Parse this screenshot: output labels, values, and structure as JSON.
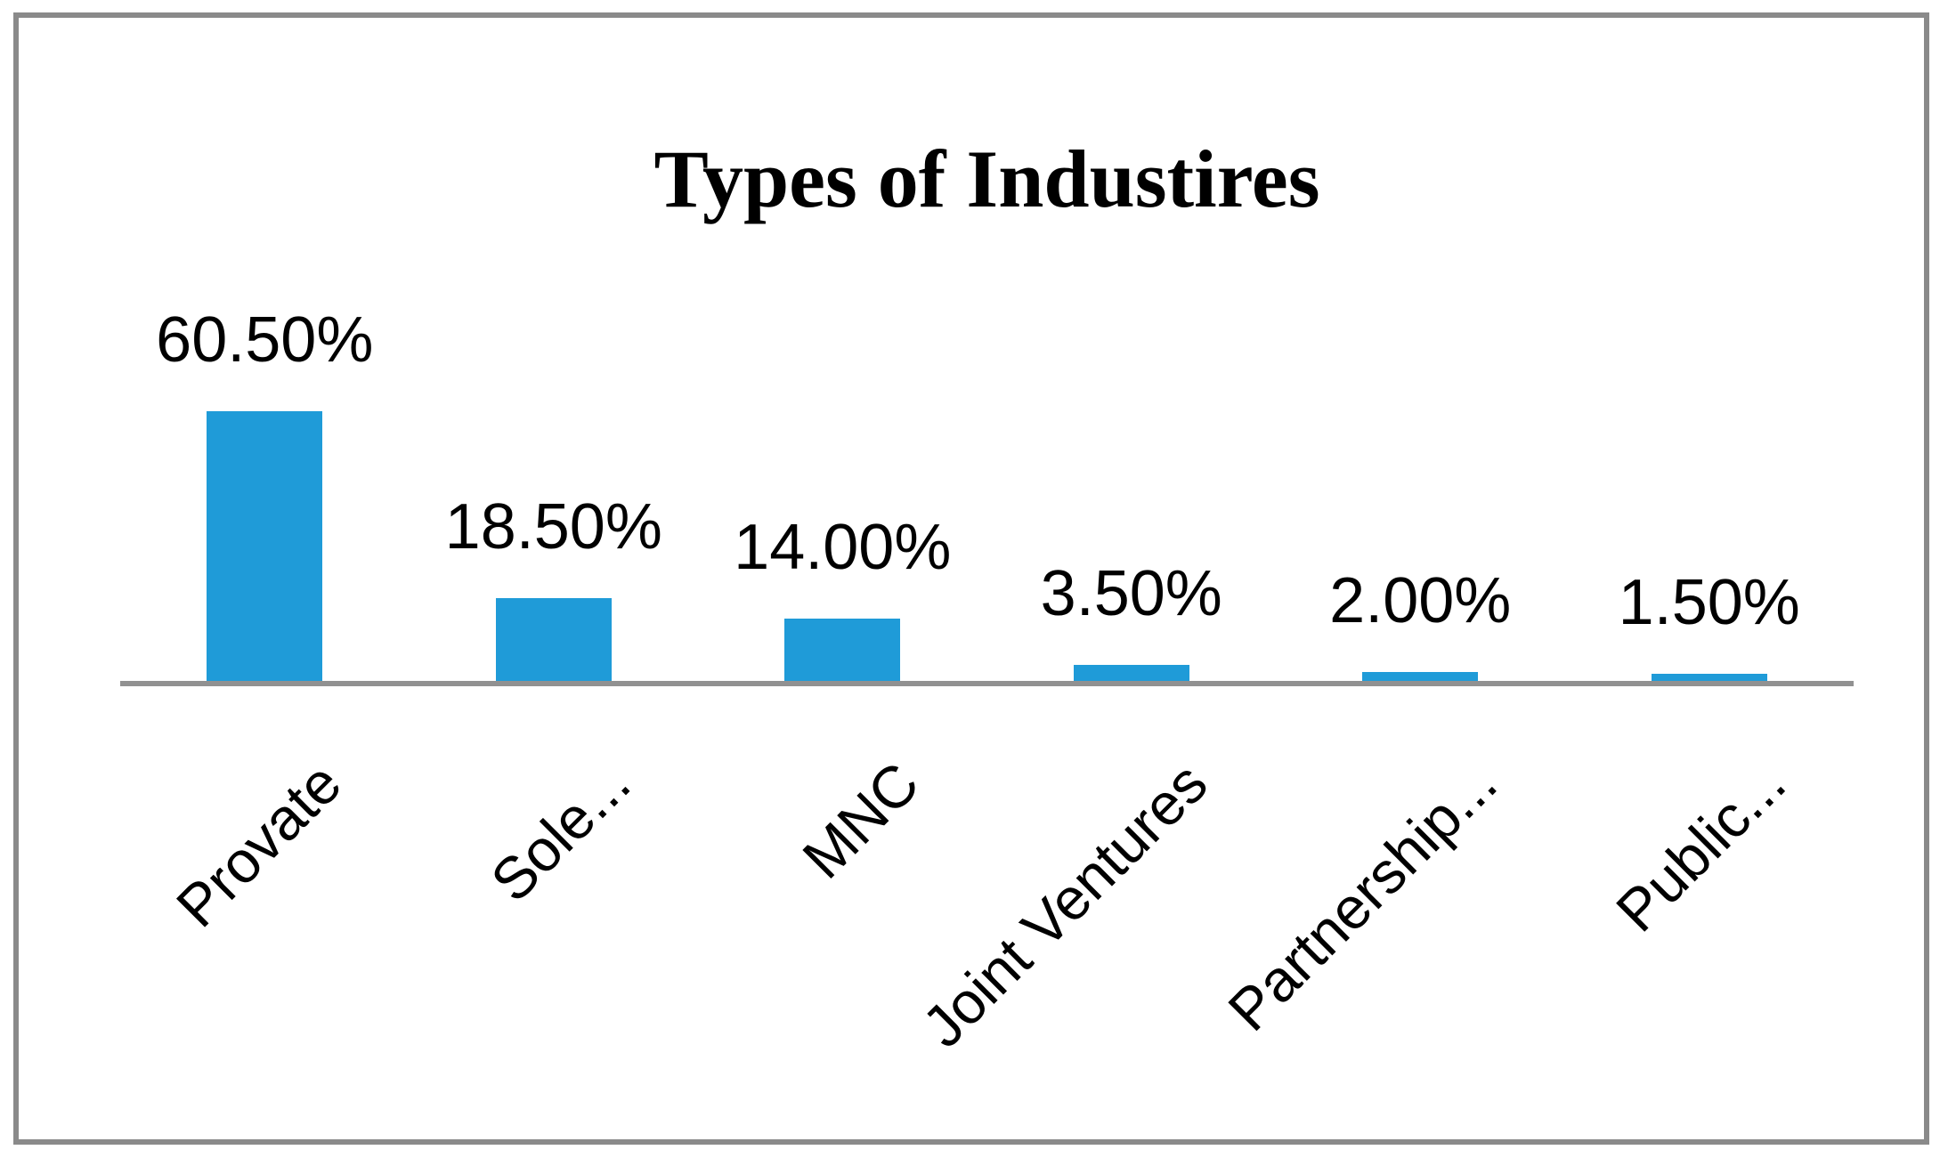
{
  "title": "Types of Industires",
  "colors": {
    "bar": "#1f9bd8",
    "axis": "#919191",
    "frame": "#8a8a8a",
    "text": "#000000",
    "background": "#ffffff"
  },
  "chart_data": {
    "type": "bar",
    "title": "Types of Industires",
    "categories": [
      "Provate",
      "Sole...",
      "MNC",
      "Joint Ventures",
      "Partnership...",
      "Public..."
    ],
    "values": [
      60.5,
      18.5,
      14.0,
      3.5,
      2.0,
      1.5
    ],
    "data_labels": [
      "60.50%",
      "18.50%",
      "14.00%",
      "3.50%",
      "2.00%",
      "1.50%"
    ],
    "xlabel": "",
    "ylabel": "",
    "ylim": [
      0,
      70
    ],
    "grid": false,
    "legend": false,
    "y_axis_ticks_visible": false,
    "bar_color": "#1f9bd8",
    "category_label_rotation_deg": 45
  }
}
